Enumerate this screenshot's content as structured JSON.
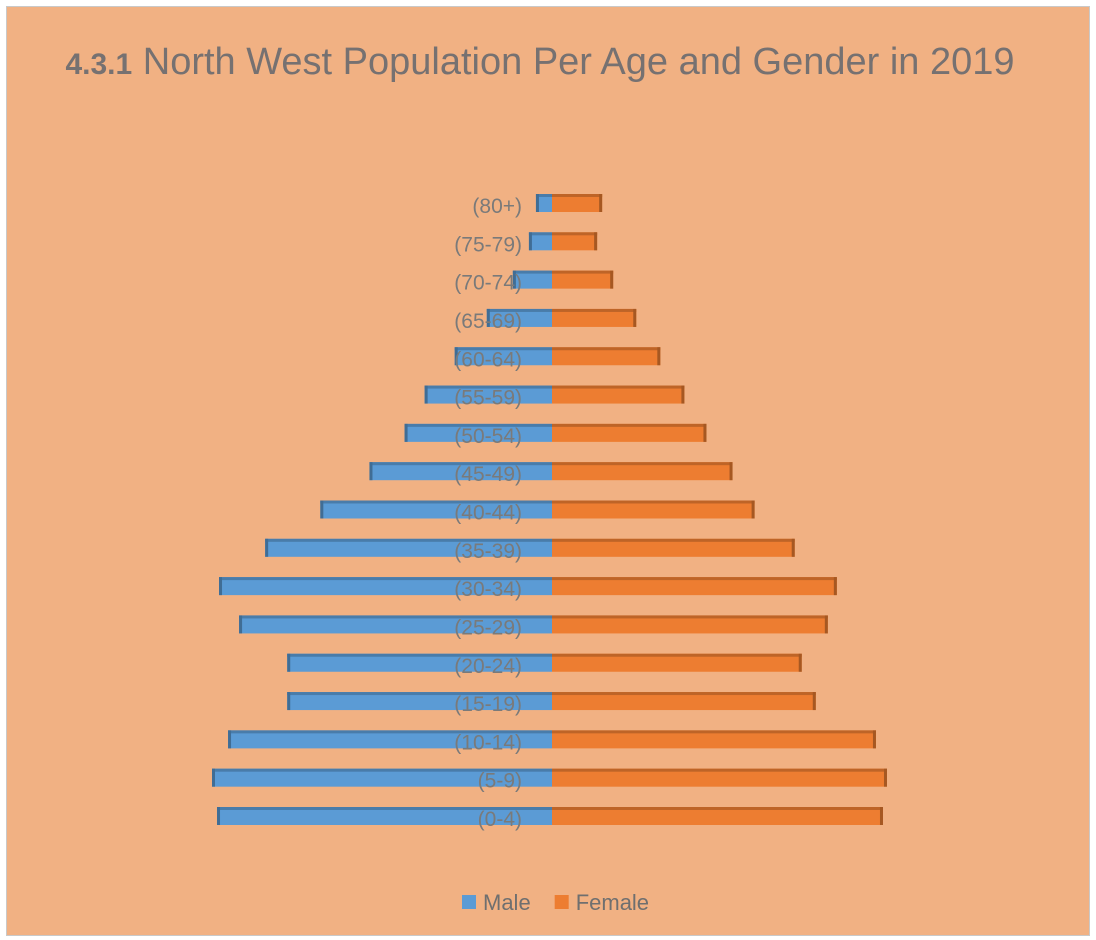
{
  "chart_data": {
    "type": "pyramid",
    "title_number": "4.3.1",
    "title": "North West Population Per Age and Gender in 2019",
    "categories": [
      "(0-4)",
      "(5-9)",
      "(10-14)",
      "(15-19)",
      "(20-24)",
      "(25-29)",
      "(30-34)",
      "(35-39)",
      "(40-44)",
      "(45-49)",
      "(50-54)",
      "(55-59)",
      "(60-64)",
      "(65-69)",
      "(70-74)",
      "(75-79)",
      "(80+)"
    ],
    "series": [
      {
        "name": "Male",
        "color": "#5b9bd5",
        "values": [
          334,
          339,
          323,
          264,
          264,
          312,
          332,
          286,
          231,
          182,
          147,
          127,
          97,
          65,
          39,
          23,
          16
        ]
      },
      {
        "name": "Female",
        "color": "#ed7d31",
        "values": [
          330,
          334,
          323,
          263,
          249,
          275,
          284,
          242,
          202,
          180,
          154,
          132,
          108,
          84,
          61,
          45,
          50
        ]
      }
    ],
    "legend": "bottom"
  }
}
